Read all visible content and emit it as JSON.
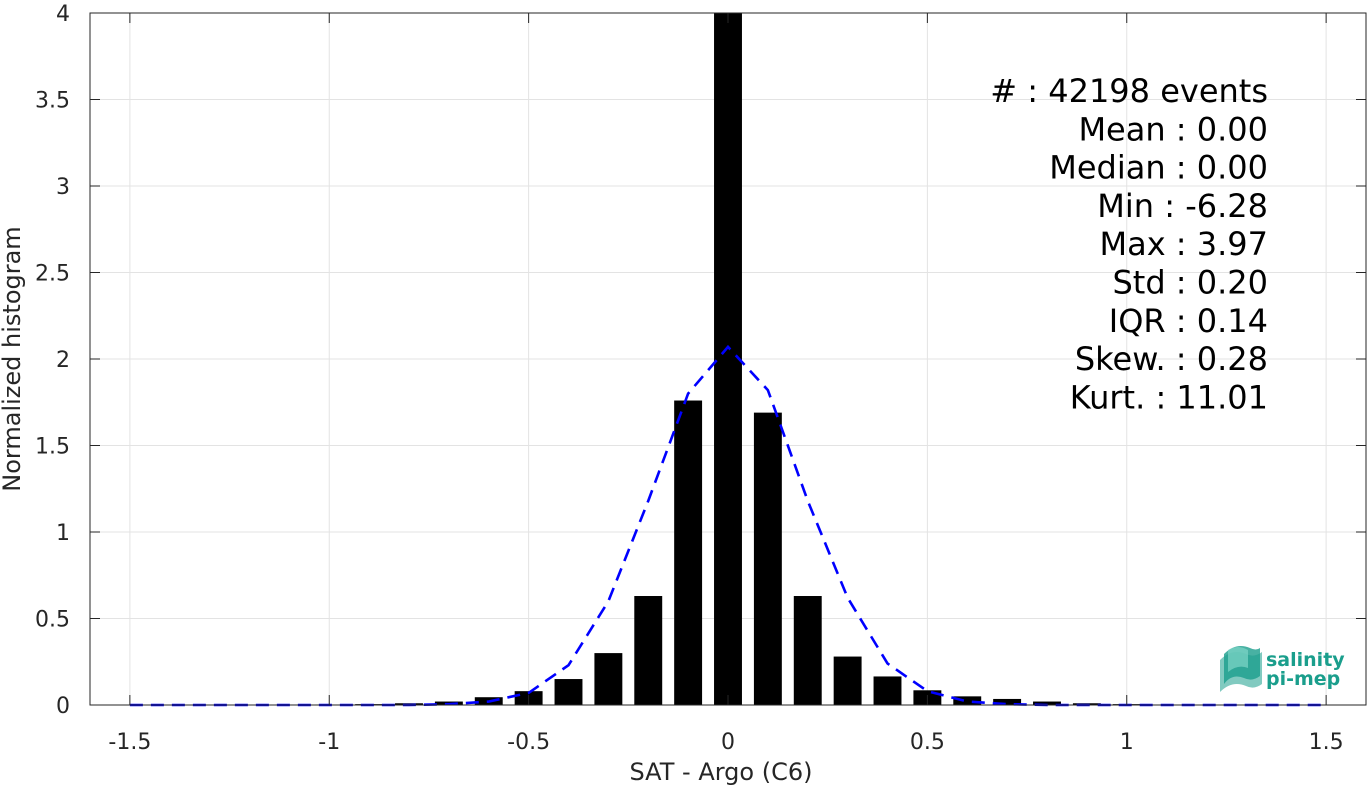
{
  "chart_data": {
    "type": "bar",
    "xlabel": "SAT - Argo (C6)",
    "ylabel": "Normalized histogram",
    "xlim": [
      -1.6,
      1.6
    ],
    "ylim": [
      0,
      4
    ],
    "xticks": [
      -1.5,
      -1,
      -0.5,
      0,
      0.5,
      1,
      1.5
    ],
    "xtick_labels": [
      "-1.5",
      "-1",
      "-0.5",
      "0",
      "0.5",
      "1",
      "1.5"
    ],
    "yticks": [
      0,
      0.5,
      1,
      1.5,
      2,
      2.5,
      3,
      3.5,
      4
    ],
    "ytick_labels": [
      "0",
      "0.5",
      "1",
      "1.5",
      "2",
      "2.5",
      "3",
      "3.5",
      "4"
    ],
    "grid": true,
    "bar_width": 0.07,
    "series": [
      {
        "kind": "bars",
        "color": "#000000",
        "x": [
          -1.5,
          -1.4,
          -1.3,
          -1.2,
          -1.1,
          -1.0,
          -0.9,
          -0.8,
          -0.7,
          -0.6,
          -0.5,
          -0.4,
          -0.3,
          -0.2,
          -0.1,
          0.0,
          0.1,
          0.2,
          0.3,
          0.4,
          0.5,
          0.6,
          0.7,
          0.8,
          0.9,
          1.0,
          1.1,
          1.2,
          1.3,
          1.4,
          1.5
        ],
        "values": [
          0.002,
          0.002,
          0.002,
          0.002,
          0.003,
          0.003,
          0.005,
          0.01,
          0.02,
          0.045,
          0.08,
          0.15,
          0.3,
          0.63,
          1.76,
          4.0,
          1.69,
          0.63,
          0.28,
          0.165,
          0.085,
          0.05,
          0.035,
          0.02,
          0.01,
          0.005,
          0.003,
          0.002,
          0.002,
          0.002,
          0.002
        ]
      },
      {
        "kind": "line",
        "style": "dashed",
        "color": "#0000ff",
        "x": [
          -1.5,
          -1.4,
          -1.3,
          -1.2,
          -1.1,
          -1.0,
          -0.9,
          -0.8,
          -0.7,
          -0.6,
          -0.5,
          -0.4,
          -0.3,
          -0.2,
          -0.1,
          0.0,
          0.1,
          0.2,
          0.3,
          0.4,
          0.5,
          0.6,
          0.7,
          0.8,
          0.9,
          1.0,
          1.1,
          1.2,
          1.3,
          1.4,
          1.5
        ],
        "values": [
          0,
          0,
          0,
          0,
          0,
          0,
          0,
          0,
          0.005,
          0.02,
          0.07,
          0.23,
          0.6,
          1.18,
          1.8,
          2.07,
          1.82,
          1.18,
          0.62,
          0.24,
          0.08,
          0.02,
          0.005,
          0,
          0,
          0,
          0,
          0,
          0,
          0,
          0
        ]
      }
    ],
    "annotations": [
      "#  : 42198 events",
      "Mean : 0.00",
      "Median : 0.00",
      "Min : -6.28",
      "Max : 3.97",
      "Std : 0.20",
      "IQR : 0.14",
      "Skew. : 0.28",
      "Kurt. : 11.01"
    ]
  },
  "logo": {
    "line1": "salinity",
    "line2": "pi-mep",
    "color": "#1a9e8c"
  }
}
